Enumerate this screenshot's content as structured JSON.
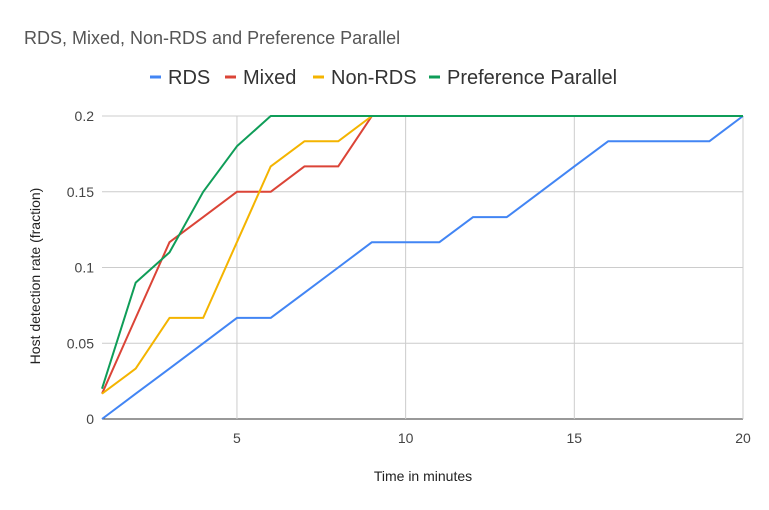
{
  "chart_data": {
    "type": "line",
    "title": "RDS, Mixed, Non-RDS and Preference Parallel",
    "xlabel": "Time in minutes",
    "ylabel": "Host detection rate (fraction)",
    "xlim": [
      1,
      20
    ],
    "ylim": [
      0,
      0.2
    ],
    "x_ticks": [
      5,
      10,
      15,
      20
    ],
    "x_tick_labels": [
      "5",
      "10",
      "15",
      "20"
    ],
    "y_ticks": [
      0,
      0.05,
      0.1,
      0.15,
      0.2
    ],
    "y_tick_labels": [
      "0",
      "0.05",
      "0.1",
      "0.15",
      "0.2"
    ],
    "grid": true,
    "legend_position": "top",
    "x": [
      1,
      2,
      3,
      4,
      5,
      6,
      7,
      8,
      9,
      10,
      11,
      12,
      13,
      14,
      15,
      16,
      17,
      18,
      19,
      20
    ],
    "series": [
      {
        "name": "RDS",
        "color": "#4285f4",
        "values": [
          0,
          0.0167,
          0.0333,
          0.05,
          0.0667,
          0.0667,
          0.0833,
          0.1,
          0.1167,
          0.1167,
          0.1167,
          0.1333,
          0.1333,
          0.15,
          0.1667,
          0.1833,
          0.1833,
          0.1833,
          0.1833,
          0.2
        ]
      },
      {
        "name": "Mixed",
        "color": "#db4437",
        "values": [
          0.0167,
          0.0667,
          0.1167,
          0.1333,
          0.15,
          0.15,
          0.1667,
          0.1667,
          0.2,
          0.2,
          0.2,
          0.2,
          0.2,
          0.2,
          0.2,
          0.2,
          0.2,
          0.2,
          0.2,
          0.2
        ]
      },
      {
        "name": "Non-RDS",
        "color": "#f4b400",
        "values": [
          0.0167,
          0.0333,
          0.0667,
          0.0667,
          0.1167,
          0.1667,
          0.1833,
          0.1833,
          0.2,
          0.2,
          0.2,
          0.2,
          0.2,
          0.2,
          0.2,
          0.2,
          0.2,
          0.2,
          0.2,
          0.2
        ]
      },
      {
        "name": "Preference Parallel",
        "color": "#0f9d58",
        "values": [
          0.02,
          0.09,
          0.11,
          0.15,
          0.18,
          0.2,
          0.2,
          0.2,
          0.2,
          0.2,
          0.2,
          0.2,
          0.2,
          0.2,
          0.2,
          0.2,
          0.2,
          0.2,
          0.2,
          0.2
        ]
      }
    ]
  }
}
